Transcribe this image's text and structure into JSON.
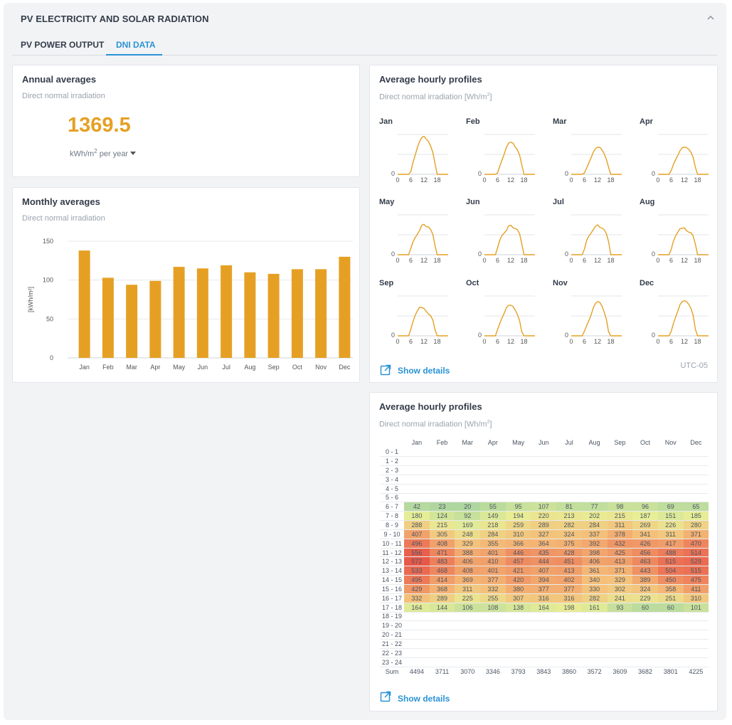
{
  "header": {
    "title": "PV ELECTRICITY AND SOLAR RADIATION",
    "collapse_icon": "chevron-up-icon"
  },
  "tabs": [
    {
      "label": "PV POWER OUTPUT",
      "active": false
    },
    {
      "label": "DNI DATA",
      "active": true
    }
  ],
  "colors": {
    "accent": "#2a93d5",
    "bar": "#e5a024",
    "line": "#e5a024"
  },
  "annual": {
    "title": "Annual averages",
    "subtitle": "Direct normal irradiation",
    "value": "1369.5",
    "unit_prefix": "kWh/m",
    "unit_sup": "2",
    "unit_suffix": " per year"
  },
  "monthly": {
    "title": "Monthly averages",
    "subtitle": "Direct normal irradiation"
  },
  "hourly": {
    "title": "Average hourly profiles",
    "subtitle_prefix": "Direct normal irradiation [Wh/m",
    "subtitle_sup": "2",
    "subtitle_suffix": "]",
    "show_details": "Show details",
    "timezone": "UTC-05",
    "x_ticks": [
      "0",
      "6",
      "12",
      "18"
    ],
    "y_tick": "0"
  },
  "table": {
    "title": "Average hourly profiles",
    "subtitle_prefix": "Direct normal irradiation [Wh/m",
    "subtitle_sup": "2",
    "subtitle_suffix": "]",
    "show_details": "Show details",
    "months": [
      "Jan",
      "Feb",
      "Mar",
      "Apr",
      "May",
      "Jun",
      "Jul",
      "Aug",
      "Sep",
      "Oct",
      "Nov",
      "Dec"
    ],
    "row_labels": [
      "0 - 1",
      "1 - 2",
      "2 - 3",
      "3 - 4",
      "4 - 5",
      "5 - 6",
      "6 - 7",
      "7 - 8",
      "8 - 9",
      "9 - 10",
      "10 - 11",
      "11 - 12",
      "12 - 13",
      "13 - 14",
      "14 - 15",
      "15 - 16",
      "16 - 17",
      "17 - 18",
      "18 - 19",
      "19 - 20",
      "20 - 21",
      "21 - 22",
      "22 - 23",
      "23 - 24"
    ],
    "sum_label": "Sum",
    "sums": [
      4494,
      3711,
      3070,
      3346,
      3793,
      3843,
      3860,
      3572,
      3609,
      3682,
      3801,
      4225
    ]
  },
  "chart_data": [
    {
      "type": "bar",
      "categories": [
        "Jan",
        "Feb",
        "Mar",
        "Apr",
        "May",
        "Jun",
        "Jul",
        "Aug",
        "Sep",
        "Oct",
        "Nov",
        "Dec"
      ],
      "values": [
        138,
        103,
        94,
        99,
        117,
        115,
        119,
        110,
        108,
        114,
        114,
        130
      ],
      "ylabel": "[kWh/m²]",
      "y_ticks": [
        0,
        50,
        100,
        150
      ],
      "ylim": [
        0,
        150
      ],
      "grid": true
    },
    {
      "type": "line",
      "x": [
        0,
        1,
        2,
        3,
        4,
        5,
        6,
        7,
        8,
        9,
        10,
        11,
        12,
        13,
        14,
        15,
        16,
        17,
        18,
        19,
        20,
        21,
        22,
        23
      ],
      "x_ticks": [
        0,
        6,
        12,
        18
      ],
      "y_tick": "0",
      "series": [
        {
          "label": "Jan",
          "values": [
            0,
            0,
            0,
            0,
            0,
            0,
            42,
            180,
            288,
            407,
            496,
            556,
            572,
            533,
            495,
            429,
            332,
            164,
            0,
            0,
            0,
            0,
            0,
            0
          ]
        },
        {
          "label": "Feb",
          "values": [
            0,
            0,
            0,
            0,
            0,
            0,
            23,
            124,
            215,
            305,
            408,
            471,
            483,
            468,
            414,
            368,
            289,
            144,
            0,
            0,
            0,
            0,
            0,
            0
          ]
        },
        {
          "label": "Mar",
          "values": [
            0,
            0,
            0,
            0,
            0,
            0,
            20,
            92,
            169,
            248,
            329,
            388,
            406,
            408,
            369,
            311,
            225,
            106,
            0,
            0,
            0,
            0,
            0,
            0
          ]
        },
        {
          "label": "Apr",
          "values": [
            0,
            0,
            0,
            0,
            0,
            0,
            55,
            149,
            218,
            284,
            355,
            401,
            410,
            401,
            377,
            332,
            255,
            108,
            0,
            0,
            0,
            0,
            0,
            0
          ]
        },
        {
          "label": "May",
          "values": [
            0,
            0,
            0,
            0,
            0,
            0,
            95,
            194,
            259,
            310,
            366,
            446,
            457,
            421,
            420,
            380,
            307,
            138,
            0,
            0,
            0,
            0,
            0,
            0
          ]
        },
        {
          "label": "Jun",
          "values": [
            0,
            0,
            0,
            0,
            0,
            0,
            107,
            220,
            289,
            327,
            364,
            435,
            444,
            407,
            394,
            377,
            316,
            164,
            0,
            0,
            0,
            0,
            0,
            0
          ]
        },
        {
          "label": "Jul",
          "values": [
            0,
            0,
            0,
            0,
            0,
            0,
            81,
            213,
            282,
            324,
            375,
            428,
            451,
            413,
            402,
            377,
            316,
            198,
            0,
            0,
            0,
            0,
            0,
            0
          ]
        },
        {
          "label": "Aug",
          "values": [
            0,
            0,
            0,
            0,
            0,
            0,
            77,
            202,
            284,
            337,
            392,
            398,
            406,
            361,
            340,
            330,
            282,
            161,
            0,
            0,
            0,
            0,
            0,
            0
          ]
        },
        {
          "label": "Sep",
          "values": [
            0,
            0,
            0,
            0,
            0,
            0,
            98,
            215,
            311,
            378,
            432,
            425,
            413,
            371,
            329,
            302,
            241,
            93,
            0,
            0,
            0,
            0,
            0,
            0
          ]
        },
        {
          "label": "Oct",
          "values": [
            0,
            0,
            0,
            0,
            0,
            0,
            96,
            187,
            269,
            341,
            426,
            456,
            463,
            443,
            389,
            324,
            229,
            60,
            0,
            0,
            0,
            0,
            0,
            0
          ]
        },
        {
          "label": "Nov",
          "values": [
            0,
            0,
            0,
            0,
            0,
            0,
            69,
            151,
            226,
            311,
            417,
            488,
            515,
            504,
            450,
            358,
            251,
            60,
            0,
            0,
            0,
            0,
            0,
            0
          ]
        },
        {
          "label": "Dec",
          "values": [
            0,
            0,
            0,
            0,
            0,
            0,
            65,
            185,
            280,
            371,
            470,
            514,
            529,
            515,
            475,
            411,
            310,
            101,
            0,
            0,
            0,
            0,
            0,
            0
          ]
        }
      ]
    },
    {
      "type": "heatmap",
      "note": "rows are hours 0-24, columns months; values in Wh/m2, empty hours have no value",
      "rows_with_values": [
        6,
        7,
        8,
        9,
        10,
        11,
        12,
        13,
        14,
        15,
        16,
        17
      ]
    }
  ]
}
